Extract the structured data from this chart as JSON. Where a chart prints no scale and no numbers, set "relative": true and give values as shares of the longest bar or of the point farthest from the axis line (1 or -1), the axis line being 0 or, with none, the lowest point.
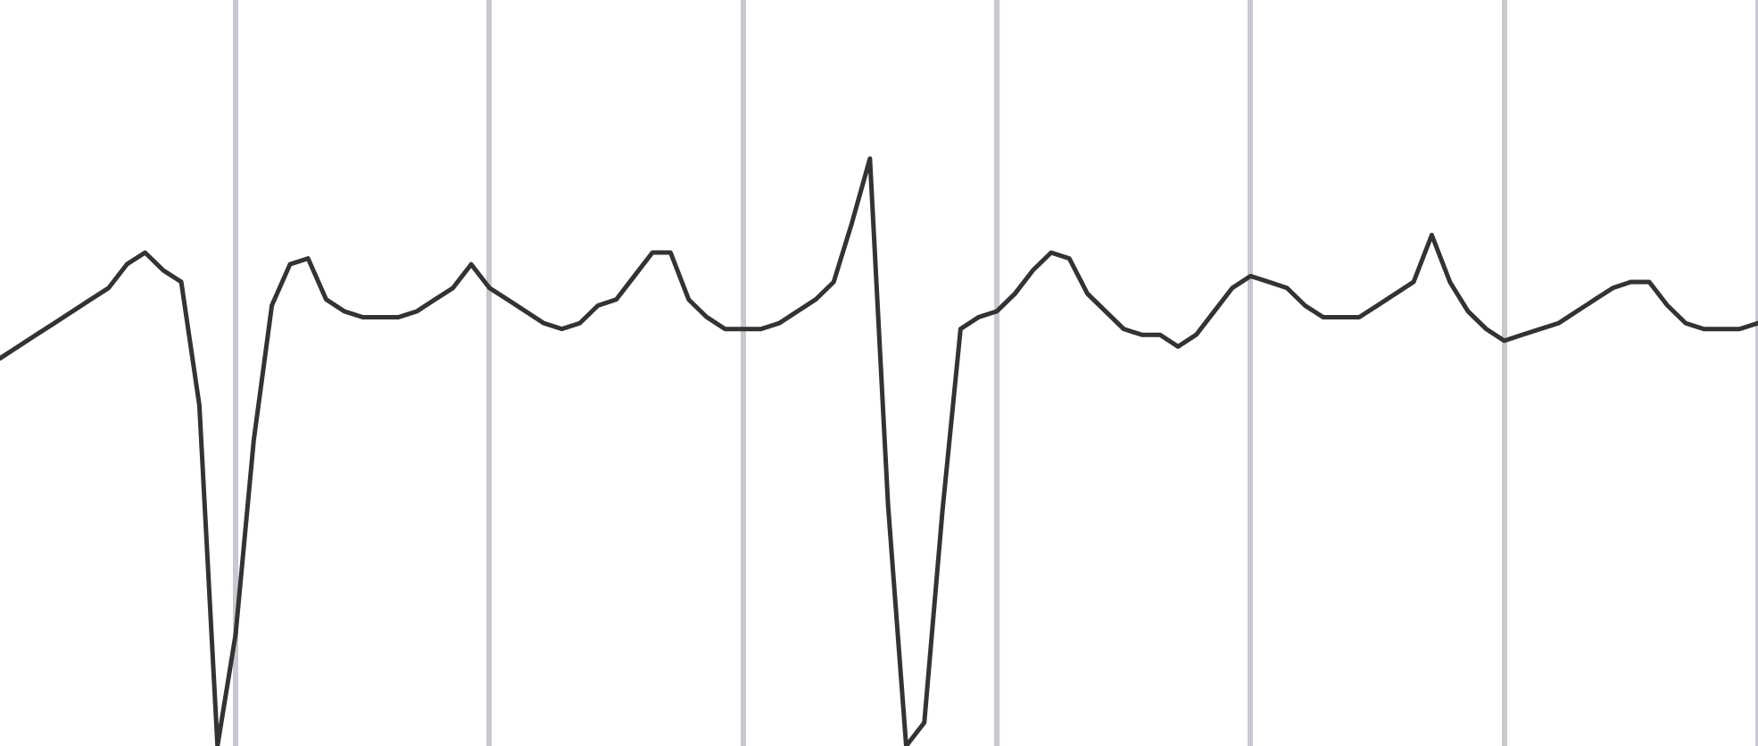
{
  "chart_data": {
    "type": "line",
    "relative": true,
    "grid": "x",
    "marker": "none",
    "line_style": "solid",
    "categories": [
      null,
      null,
      null,
      null,
      null,
      null,
      null,
      null,
      null,
      null,
      null,
      null,
      null,
      null,
      null,
      null,
      null,
      null,
      null,
      null,
      null,
      null,
      null,
      null,
      null,
      null,
      null,
      null,
      null,
      null,
      null,
      null,
      null,
      null,
      null,
      null,
      null,
      null,
      null,
      null,
      null,
      null,
      null,
      null,
      null,
      null,
      null,
      null,
      null,
      null,
      null,
      null,
      null,
      null,
      null,
      null,
      null,
      null,
      null,
      null,
      null,
      null,
      null,
      null,
      null,
      null,
      null,
      null,
      null,
      null,
      null,
      null,
      null,
      null,
      null,
      null,
      null,
      null,
      null,
      null,
      null,
      null,
      null,
      null,
      null,
      null,
      null,
      null,
      null,
      null,
      null,
      null,
      null,
      null,
      null,
      null,
      null,
      null
    ],
    "series": [
      {
        "color": "#333333",
        "values": [
          0.66,
          0.68,
          0.7,
          0.72,
          0.74,
          0.76,
          0.78,
          0.82,
          0.84,
          0.81,
          0.79,
          0.58,
          0,
          0.19,
          0.52,
          0.75,
          0.82,
          0.83,
          0.76,
          0.74,
          0.73,
          0.73,
          0.73,
          0.74,
          0.76,
          0.78,
          0.82,
          0.78,
          0.76,
          0.74,
          0.72,
          0.71,
          0.72,
          0.75,
          0.76,
          0.8,
          0.84,
          0.84,
          0.76,
          0.73,
          0.71,
          0.71,
          0.71,
          0.72,
          0.74,
          0.76,
          0.79,
          0.89,
          1,
          0.41,
          0,
          0.04,
          0.4,
          0.71,
          0.73,
          0.74,
          0.77,
          0.81,
          0.84,
          0.83,
          0.77,
          0.74,
          0.71,
          0.7,
          0.7,
          0.68,
          0.7,
          0.74,
          0.78,
          0.8,
          0.79,
          0.78,
          0.75,
          0.73,
          0.73,
          0.73,
          0.75,
          0.77,
          0.79,
          0.87,
          0.79,
          0.74,
          0.71,
          0.69,
          0.7,
          0.71,
          0.72,
          0.74,
          0.76,
          0.78,
          0.79,
          0.79,
          0.75,
          0.72,
          0.71,
          0.71,
          0.71,
          0.72
        ]
      }
    ]
  }
}
